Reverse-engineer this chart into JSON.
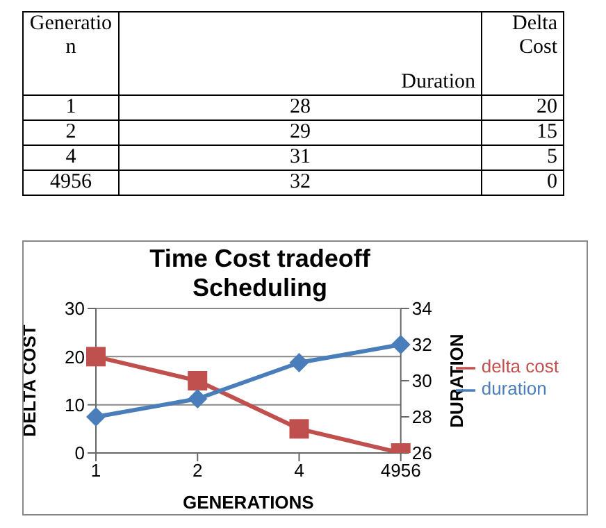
{
  "chart_data": [
    {
      "type": "other",
      "xlabel": "Generation",
      "categories": [
        "1",
        "2",
        "4",
        "4956"
      ],
      "data_labels": true,
      "series": [
        {
          "name": "Duration",
          "values": [
            28,
            29,
            31,
            32
          ]
        },
        {
          "name": "Delta Cost",
          "values": [
            20,
            15,
            5,
            0
          ]
        }
      ]
    },
    {
      "type": "line",
      "title": "Time Cost tradeoff Scheduling",
      "xlabel": "GENERATIONS",
      "ylabel": "DELTA COST",
      "y2label": "DURATION",
      "categories": [
        "1",
        "2",
        "4",
        "4956"
      ],
      "series": [
        {
          "name": "delta cost",
          "color": "#c0504d",
          "values": [
            20,
            15,
            5,
            0
          ],
          "marker": "square"
        },
        {
          "name": "duration",
          "color": "#4a7ebb",
          "values": [
            28,
            29,
            31,
            32
          ],
          "axis": "y2",
          "marker": "diamond"
        }
      ],
      "ylim": [
        0,
        30
      ],
      "yticks": [
        0,
        10,
        20,
        30
      ],
      "y2lim": [
        26,
        34
      ],
      "y2ticks": [
        26,
        28,
        30,
        32,
        34
      ],
      "grid": "y",
      "legend": "right"
    }
  ]
}
